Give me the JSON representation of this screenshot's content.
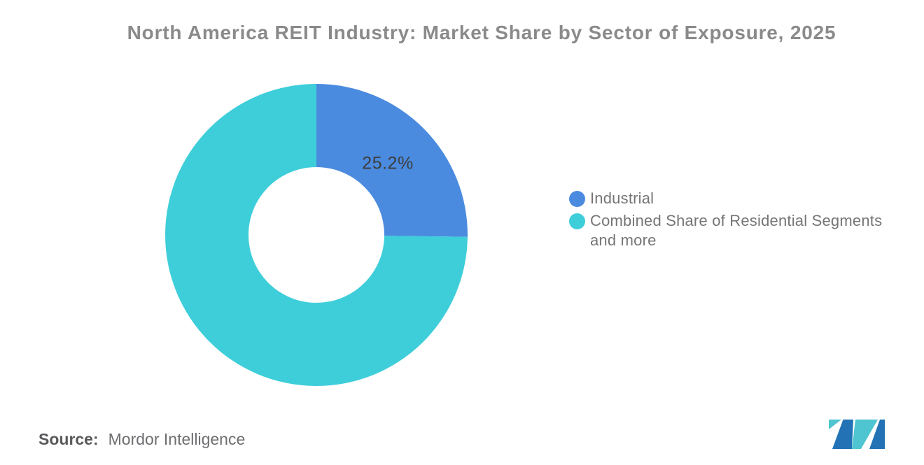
{
  "title": "North America REIT Industry: Market Share by Sector of Exposure, 2025",
  "chart_data": {
    "type": "pie",
    "subtype": "donut",
    "title": "North America REIT Industry: Market Share by Sector of Exposure, 2025",
    "categories": [
      "Industrial",
      "Combined Share of Residential Segments and more"
    ],
    "values": [
      25.2,
      74.8
    ],
    "unit": "%",
    "colors": [
      "#4A8BDF",
      "#3ECEDA"
    ],
    "data_labels": [
      "25.2%",
      ""
    ],
    "start_angle_deg": 0,
    "direction": "clockwise",
    "inner_radius_ratio": 0.45,
    "legend_position": "right",
    "grid": false
  },
  "legend": {
    "items": [
      {
        "label": "Industrial",
        "color": "#4A8BDF"
      },
      {
        "label": "Combined Share of Residential Segments and more",
        "color": "#3ECEDA"
      }
    ]
  },
  "source": {
    "label": "Source:",
    "value": "Mordor Intelligence"
  },
  "logo": {
    "name": "mordor-intelligence-logo",
    "colors": {
      "blue": "#2272B5",
      "teal": "#4EC5D0"
    }
  }
}
